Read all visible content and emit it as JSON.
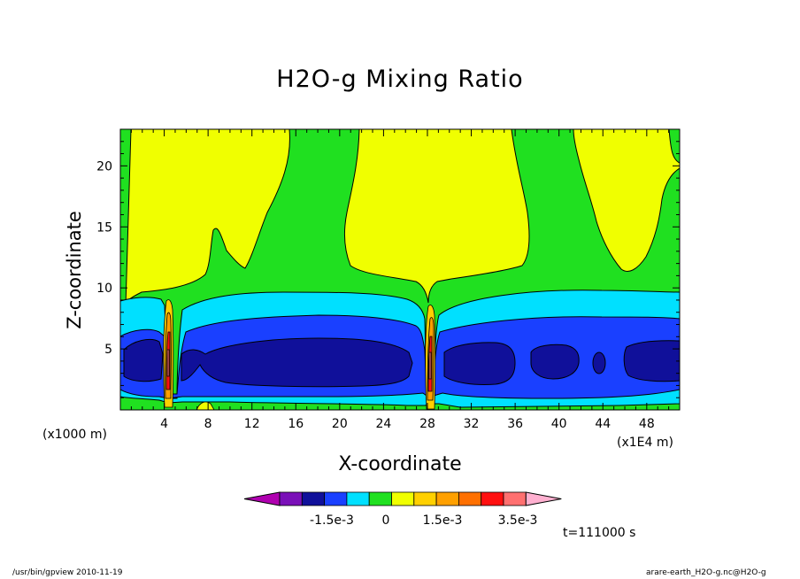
{
  "chart_data": {
    "type": "contour",
    "title": "H2O-g Mixing Ratio",
    "xlabel": "X-coordinate",
    "ylabel": "Z-coordinate",
    "x_unit_label": "(x1E4 m)",
    "y_unit_label": "(x1000 m)",
    "x_ticks": [
      4,
      8,
      12,
      16,
      20,
      24,
      28,
      32,
      36,
      40,
      44,
      48
    ],
    "y_ticks": [
      5,
      10,
      15,
      20
    ],
    "xlim": [
      0,
      51
    ],
    "ylim": [
      0,
      23
    ],
    "time_label": "t=111000 s",
    "colorbar": {
      "colors": [
        "#b000b0",
        "#7a10b8",
        "#10109a",
        "#1a40ff",
        "#00e0ff",
        "#20e020",
        "#f0ff00",
        "#ffd000",
        "#ffa000",
        "#ff7000",
        "#ff1010",
        "#ff7070",
        "#ffb0d0"
      ],
      "labels": [
        "-1.5e-3",
        "0",
        "1.5e-3",
        "3.5e-3"
      ]
    },
    "regions": [
      {
        "level": 0,
        "color": "#20e020",
        "description": "background near-zero field"
      },
      {
        "level": 0.0005,
        "color": "#f0ff00",
        "description": "upper troposphere positive bands at x≈0-16, 21-37, 41-51"
      },
      {
        "level": -0.0005,
        "color": "#00e0ff",
        "description": "lower layer z≈1-9"
      },
      {
        "level": -0.001,
        "color": "#1a40ff",
        "description": "layer z≈1.5-6.5"
      },
      {
        "level": -0.0015,
        "color": "#10109a",
        "description": "core z≈2.5-6"
      },
      {
        "level": 0.0035,
        "color": "#ff7070",
        "description": "narrow updrafts at x≈4.4 and x≈28.4"
      }
    ]
  },
  "footer": {
    "left": "/usr/bin/gpview   2010-11-19",
    "right": "arare-earth_H2O-g.nc@H2O-g"
  }
}
